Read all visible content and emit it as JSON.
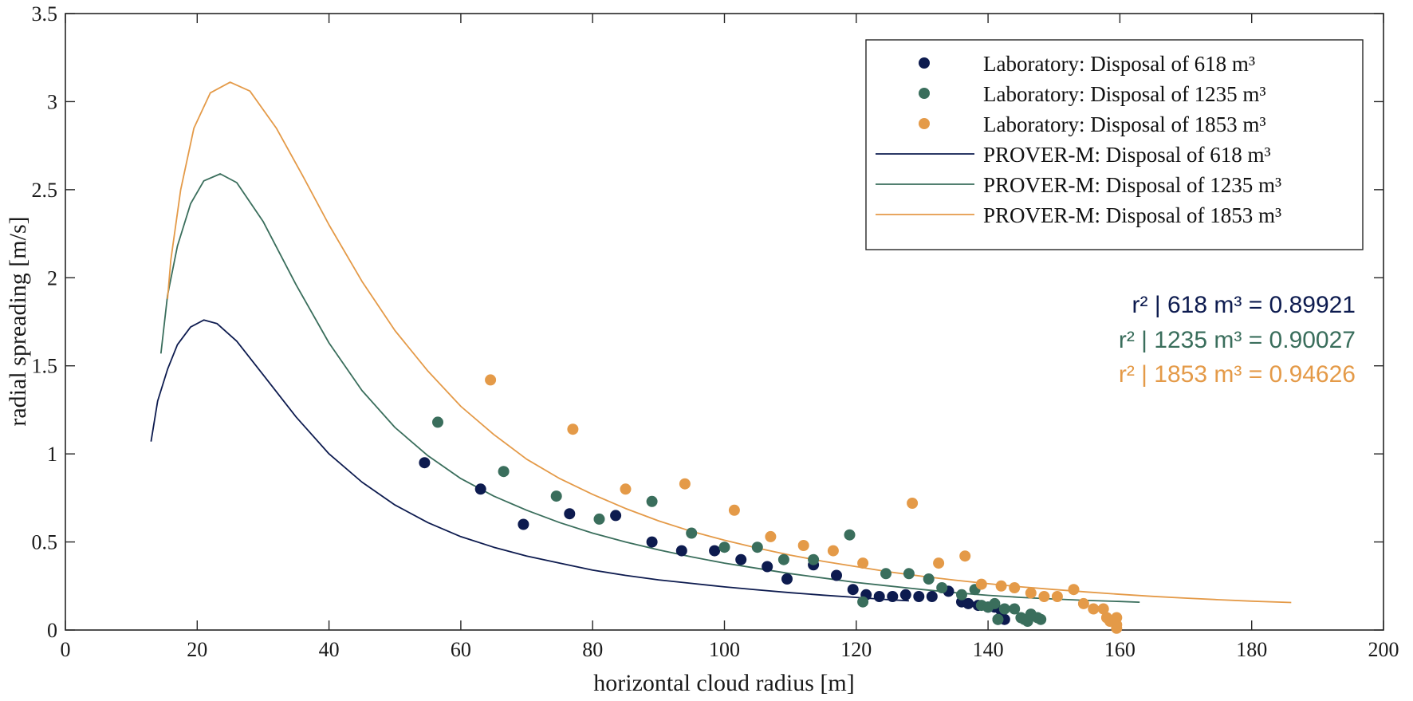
{
  "chart_data": {
    "type": "scatter",
    "title": "",
    "xlabel": "horizontal cloud radius [m]",
    "ylabel": "radial spreading [m/s]",
    "xlim": [
      0,
      200
    ],
    "ylim": [
      0,
      3.5
    ],
    "xticks": [
      "0",
      "20",
      "40",
      "60",
      "80",
      "100",
      "120",
      "140",
      "160",
      "180",
      "200"
    ],
    "yticks": [
      "0",
      "0.5",
      "1",
      "1.5",
      "2",
      "2.5",
      "3",
      "3.5"
    ],
    "grid": false,
    "legend_position": "top-right",
    "series": [
      {
        "name": "Laboratory:    Disposal of 618 m³",
        "kind": "scatter",
        "color": "#0d1b4f",
        "points": [
          [
            54.5,
            0.95
          ],
          [
            63,
            0.8
          ],
          [
            69.5,
            0.6
          ],
          [
            76.5,
            0.66
          ],
          [
            83.5,
            0.65
          ],
          [
            89,
            0.5
          ],
          [
            93.5,
            0.45
          ],
          [
            98.5,
            0.45
          ],
          [
            102.5,
            0.4
          ],
          [
            106.5,
            0.36
          ],
          [
            109.5,
            0.29
          ],
          [
            113.5,
            0.37
          ],
          [
            117,
            0.31
          ],
          [
            119.5,
            0.23
          ],
          [
            121.5,
            0.2
          ],
          [
            123.5,
            0.19
          ],
          [
            125.5,
            0.19
          ],
          [
            127.5,
            0.2
          ],
          [
            129.5,
            0.19
          ],
          [
            131.5,
            0.19
          ],
          [
            134,
            0.22
          ],
          [
            136,
            0.16
          ],
          [
            137,
            0.15
          ],
          [
            138.5,
            0.14
          ],
          [
            140,
            0.13
          ],
          [
            141,
            0.13
          ],
          [
            142,
            0.11
          ],
          [
            141.5,
            0.06
          ],
          [
            142.5,
            0.06
          ]
        ]
      },
      {
        "name": "Laboratory:    Disposal of 1235 m³",
        "kind": "scatter",
        "color": "#3a6e5c",
        "points": [
          [
            56.5,
            1.18
          ],
          [
            66.5,
            0.9
          ],
          [
            74.5,
            0.76
          ],
          [
            81,
            0.63
          ],
          [
            89,
            0.73
          ],
          [
            95,
            0.55
          ],
          [
            100,
            0.47
          ],
          [
            105,
            0.47
          ],
          [
            109,
            0.4
          ],
          [
            113.5,
            0.4
          ],
          [
            119,
            0.54
          ],
          [
            121,
            0.16
          ],
          [
            124.5,
            0.32
          ],
          [
            128,
            0.32
          ],
          [
            131,
            0.29
          ],
          [
            133,
            0.24
          ],
          [
            136,
            0.2
          ],
          [
            138,
            0.23
          ],
          [
            139,
            0.14
          ],
          [
            140,
            0.13
          ],
          [
            141,
            0.15
          ],
          [
            141.5,
            0.06
          ],
          [
            142.5,
            0.12
          ],
          [
            144,
            0.12
          ],
          [
            145,
            0.07
          ],
          [
            145.5,
            0.06
          ],
          [
            146,
            0.05
          ],
          [
            146.5,
            0.09
          ],
          [
            147.5,
            0.07
          ],
          [
            148,
            0.06
          ]
        ]
      },
      {
        "name": "Laboratory:    Disposal of 1853 m³",
        "kind": "scatter",
        "color": "#e49a48",
        "points": [
          [
            64.5,
            1.42
          ],
          [
            77,
            1.14
          ],
          [
            85,
            0.8
          ],
          [
            94,
            0.83
          ],
          [
            101.5,
            0.68
          ],
          [
            107,
            0.53
          ],
          [
            112,
            0.48
          ],
          [
            116.5,
            0.45
          ],
          [
            121,
            0.38
          ],
          [
            128.5,
            0.72
          ],
          [
            132.5,
            0.38
          ],
          [
            136.5,
            0.42
          ],
          [
            139,
            0.26
          ],
          [
            142,
            0.25
          ],
          [
            144,
            0.24
          ],
          [
            146.5,
            0.21
          ],
          [
            148.5,
            0.19
          ],
          [
            150.5,
            0.19
          ],
          [
            153,
            0.23
          ],
          [
            154.5,
            0.15
          ],
          [
            156,
            0.12
          ],
          [
            157.5,
            0.12
          ],
          [
            158,
            0.07
          ],
          [
            159,
            0.05
          ],
          [
            159.5,
            0.07
          ],
          [
            159.5,
            0.03
          ],
          [
            159.5,
            0.01
          ],
          [
            158.5,
            0.05
          ]
        ]
      },
      {
        "name": "PROVER-M: Disposal of 618 m³",
        "kind": "line",
        "color": "#0d1b4f",
        "points": [
          [
            13,
            1.07
          ],
          [
            14,
            1.3
          ],
          [
            15.5,
            1.48
          ],
          [
            17,
            1.62
          ],
          [
            19,
            1.72
          ],
          [
            21,
            1.76
          ],
          [
            23,
            1.74
          ],
          [
            26,
            1.64
          ],
          [
            30,
            1.45
          ],
          [
            35,
            1.21
          ],
          [
            40,
            1.0
          ],
          [
            45,
            0.84
          ],
          [
            50,
            0.71
          ],
          [
            55,
            0.61
          ],
          [
            60,
            0.53
          ],
          [
            65,
            0.47
          ],
          [
            70,
            0.42
          ],
          [
            75,
            0.38
          ],
          [
            80,
            0.34
          ],
          [
            85,
            0.31
          ],
          [
            90,
            0.285
          ],
          [
            95,
            0.265
          ],
          [
            100,
            0.245
          ],
          [
            105,
            0.228
          ],
          [
            110,
            0.212
          ],
          [
            115,
            0.198
          ],
          [
            120,
            0.185
          ],
          [
            125,
            0.172
          ],
          [
            128,
            0.166
          ]
        ]
      },
      {
        "name": "PROVER-M: Disposal of 1235 m³",
        "kind": "line",
        "color": "#3a6e5c",
        "points": [
          [
            14.5,
            1.57
          ],
          [
            15.5,
            1.9
          ],
          [
            17,
            2.18
          ],
          [
            19,
            2.42
          ],
          [
            21,
            2.55
          ],
          [
            23.5,
            2.59
          ],
          [
            26,
            2.54
          ],
          [
            30,
            2.32
          ],
          [
            35,
            1.96
          ],
          [
            40,
            1.63
          ],
          [
            45,
            1.36
          ],
          [
            50,
            1.15
          ],
          [
            55,
            0.99
          ],
          [
            60,
            0.86
          ],
          [
            65,
            0.76
          ],
          [
            70,
            0.68
          ],
          [
            75,
            0.61
          ],
          [
            80,
            0.55
          ],
          [
            85,
            0.5
          ],
          [
            90,
            0.455
          ],
          [
            95,
            0.415
          ],
          [
            100,
            0.38
          ],
          [
            105,
            0.35
          ],
          [
            110,
            0.32
          ],
          [
            115,
            0.295
          ],
          [
            120,
            0.27
          ],
          [
            125,
            0.25
          ],
          [
            130,
            0.23
          ],
          [
            135,
            0.212
          ],
          [
            140,
            0.197
          ],
          [
            145,
            0.185
          ],
          [
            150,
            0.176
          ],
          [
            155,
            0.168
          ],
          [
            160,
            0.162
          ],
          [
            163,
            0.158
          ]
        ]
      },
      {
        "name": "PROVER-M: Disposal of 1853 m³",
        "kind": "line",
        "color": "#e49a48",
        "points": [
          [
            15.5,
            1.88
          ],
          [
            16,
            2.1
          ],
          [
            17.5,
            2.5
          ],
          [
            19.5,
            2.85
          ],
          [
            22,
            3.05
          ],
          [
            25,
            3.11
          ],
          [
            28,
            3.06
          ],
          [
            32,
            2.85
          ],
          [
            36,
            2.58
          ],
          [
            40,
            2.3
          ],
          [
            45,
            1.98
          ],
          [
            50,
            1.7
          ],
          [
            55,
            1.47
          ],
          [
            60,
            1.27
          ],
          [
            65,
            1.11
          ],
          [
            70,
            0.97
          ],
          [
            75,
            0.86
          ],
          [
            80,
            0.77
          ],
          [
            85,
            0.69
          ],
          [
            90,
            0.62
          ],
          [
            95,
            0.56
          ],
          [
            100,
            0.51
          ],
          [
            105,
            0.465
          ],
          [
            110,
            0.425
          ],
          [
            115,
            0.39
          ],
          [
            120,
            0.36
          ],
          [
            125,
            0.33
          ],
          [
            130,
            0.305
          ],
          [
            135,
            0.283
          ],
          [
            140,
            0.263
          ],
          [
            145,
            0.245
          ],
          [
            150,
            0.23
          ],
          [
            155,
            0.216
          ],
          [
            160,
            0.203
          ],
          [
            165,
            0.191
          ],
          [
            170,
            0.181
          ],
          [
            175,
            0.172
          ],
          [
            180,
            0.164
          ],
          [
            186,
            0.156
          ]
        ]
      }
    ],
    "annotations": [
      {
        "text": "r² |   618 m³ = 0.89921",
        "color": "#0d1b4f"
      },
      {
        "text": "r² | 1235 m³ = 0.90027",
        "color": "#3a6e5c"
      },
      {
        "text": "r² | 1853 m³ = 0.94626",
        "color": "#e49a48"
      }
    ]
  }
}
